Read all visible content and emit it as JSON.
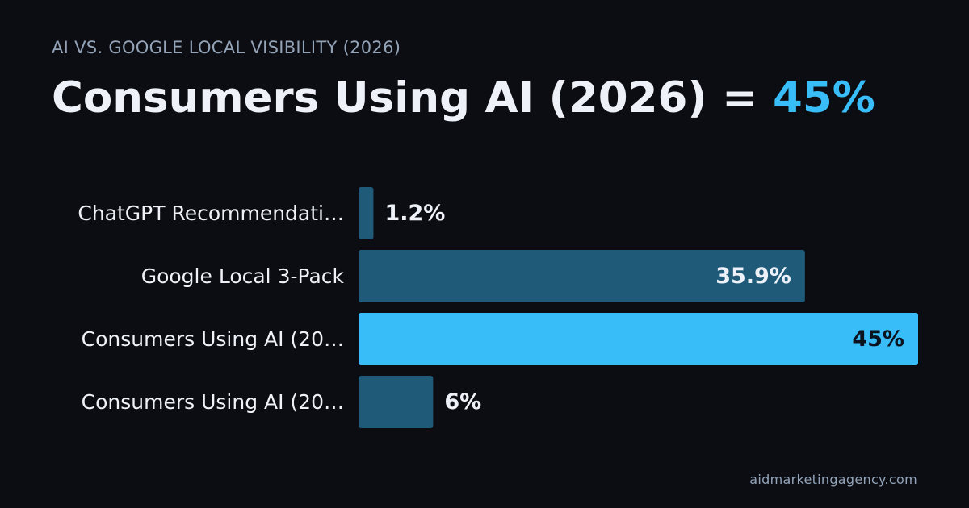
{
  "header": {
    "eyebrow": "AI VS. GOOGLE LOCAL VISIBILITY (2026)",
    "headline_prefix": "Consumers Using AI (2026) = ",
    "headline_value": "45%"
  },
  "footer": {
    "site": "aidmarketingagency.com"
  },
  "colors": {
    "background": "#0b0d12",
    "bar_default": "#1f5a78",
    "bar_highlight": "#38bdf8",
    "label_text": "#eef2f8",
    "value_text_on_default": "#eef2f8",
    "value_text_on_highlight": "#0b1220"
  },
  "chart_data": {
    "type": "bar",
    "orientation": "horizontal",
    "categories": [
      "ChatGPT Recommendati…",
      "Google Local 3-Pack",
      "Consumers Using AI (20…",
      "Consumers Using AI (20…"
    ],
    "values": [
      1.2,
      35.9,
      45,
      6
    ],
    "value_labels": [
      "1.2%",
      "35.9%",
      "45%",
      "6%"
    ],
    "highlight_index": 2,
    "xlim": [
      0,
      45
    ],
    "grid": false,
    "legend": "none"
  }
}
